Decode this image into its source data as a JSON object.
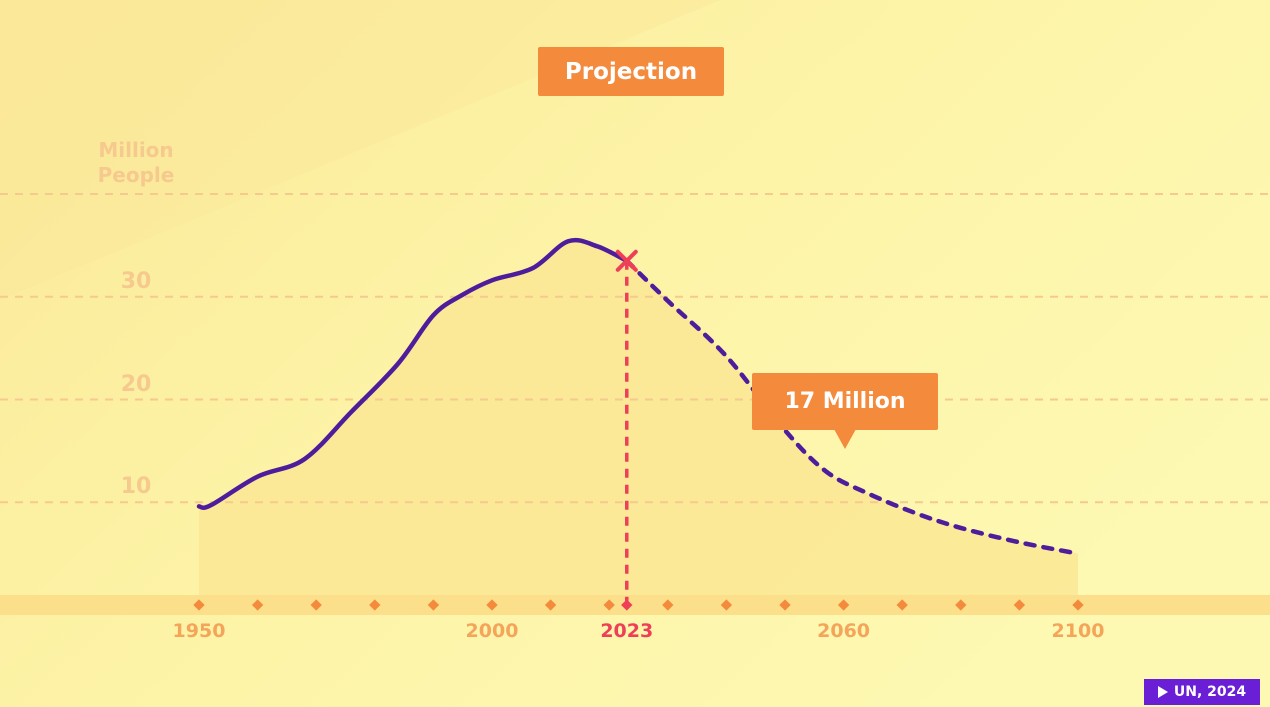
{
  "colors": {
    "background": "#fdf8ad",
    "area_fill": "#fbe896",
    "axis_band": "#fbdf8a",
    "line": "#4e1d9c",
    "gridline": "#f6c98e",
    "tick_text": "#f6c98e",
    "x_tick_text": "#f4a55a",
    "highlight": "#ef3e57",
    "label_box": "#f48a3c",
    "marker": "#f48a3c",
    "badge": "#6a1fd6"
  },
  "projection_label": "Projection",
  "callout_label": "17 Million",
  "source_badge": "UN, 2024",
  "chart_data": {
    "type": "line",
    "title": "",
    "xlabel": "",
    "ylabel": "Million People",
    "x_ticks": [
      1950,
      2000,
      2023,
      2060,
      2100
    ],
    "highlight_x_tick": 2023,
    "y_ticks": [
      10,
      20,
      30
    ],
    "y_gridlines": [
      10,
      20,
      30,
      40
    ],
    "xlim": [
      1950,
      2100
    ],
    "ylim": [
      0,
      40
    ],
    "grid": "horizontal-dashed",
    "area_fill": true,
    "marker_years": [
      1950,
      1960,
      1970,
      1980,
      1990,
      2000,
      2010,
      2020,
      2023,
      2030,
      2040,
      2050,
      2060,
      2070,
      2080,
      2090,
      2100
    ],
    "series": [
      {
        "style": "solid",
        "x": [
          1950,
          1952,
          1960,
          1968,
          1976,
          1984,
          1990,
          1995,
          2000,
          2007,
          2013,
          2018,
          2023
        ],
        "y": [
          9.6,
          9.7,
          12.5,
          14.2,
          18.8,
          23.5,
          28.2,
          30.2,
          31.6,
          32.8,
          35.4,
          34.9,
          33.5
        ]
      },
      {
        "style": "dashed",
        "x": [
          2023,
          2030,
          2040,
          2050,
          2057,
          2064,
          2072,
          2080,
          2090,
          2100
        ],
        "y": [
          33.5,
          29.6,
          24.2,
          17.0,
          13.0,
          10.9,
          9.0,
          7.5,
          6.1,
          5.0
        ]
      }
    ],
    "highlight_point": {
      "x": 2023,
      "y": 33.5
    },
    "annotation": {
      "text": "17 Million",
      "x": 2050,
      "y": 17
    }
  }
}
